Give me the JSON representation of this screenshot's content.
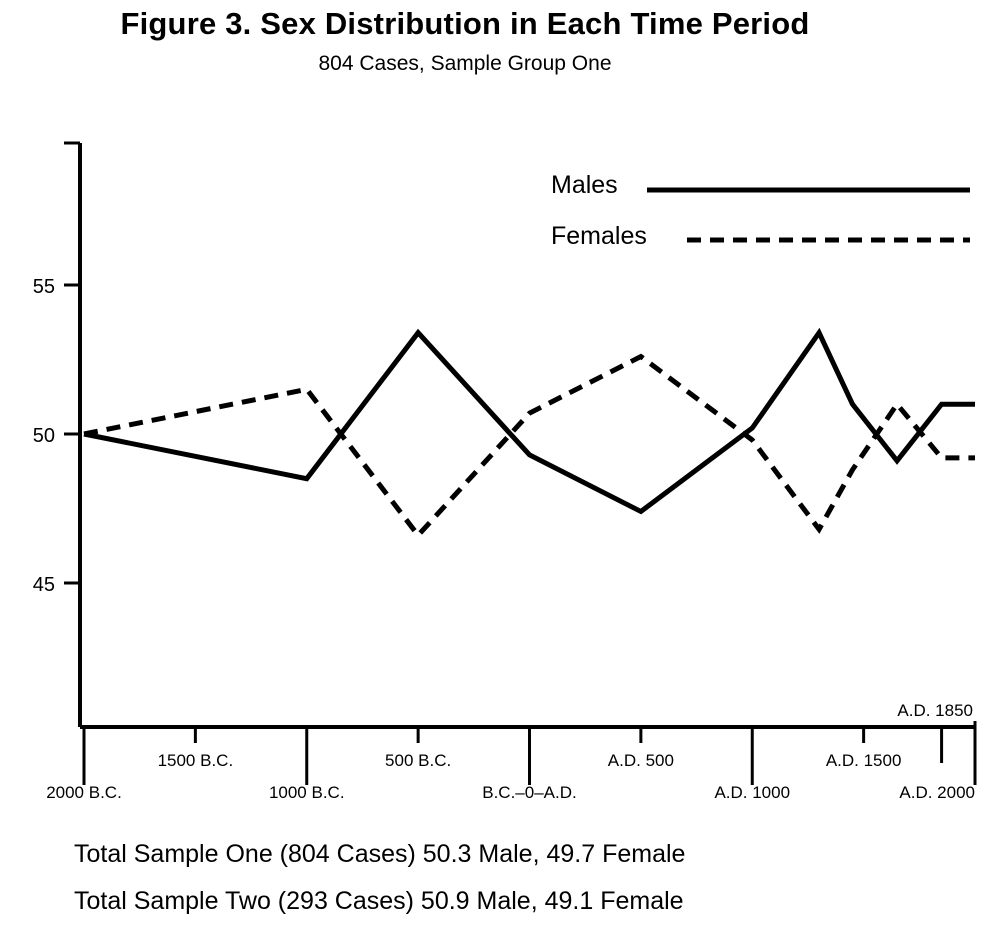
{
  "chart_data": {
    "type": "line",
    "title": "Figure 3.  Sex Distribution in Each Time Period",
    "subtitle": "804 Cases, Sample Group One",
    "xlabel": "",
    "ylabel": "",
    "x": [
      -2000,
      -1000,
      -500,
      0,
      500,
      1000,
      1500,
      1650,
      1850,
      2000
    ],
    "x_ticks_upper": [
      {
        "year": -1500,
        "label": "1500 B.C."
      },
      {
        "year": -500,
        "label": "500 B.C."
      },
      {
        "year": 500,
        "label": "A.D. 500"
      },
      {
        "year": 1500,
        "label": "A.D. 1500"
      }
    ],
    "x_ticks_lower": [
      {
        "year": -2000,
        "label": "2000 B.C."
      },
      {
        "year": -1000,
        "label": "1000 B.C."
      },
      {
        "year": 0,
        "label": "B.C.–0–A.D."
      },
      {
        "year": 1000,
        "label": "A.D. 1000"
      },
      {
        "year": 2000,
        "label": "A.D. 2000"
      }
    ],
    "x_marker": {
      "year": 1850,
      "label": "A.D. 1850"
    },
    "xlim": [
      -2000,
      2000
    ],
    "ylim": [
      40.2,
      59.8
    ],
    "y_ticks": [
      45,
      50,
      55
    ],
    "series": [
      {
        "name": "Males",
        "style": "solid",
        "x": [
          -2000,
          -1000,
          -500,
          0,
          500,
          1000,
          1300,
          1450,
          1650,
          1850,
          1950,
          2000
        ],
        "values": [
          50,
          48.5,
          53.4,
          49.3,
          47.4,
          50.2,
          53.4,
          51,
          49.1,
          51,
          51,
          51
        ]
      },
      {
        "name": "Females",
        "style": "dashed",
        "x": [
          -2000,
          -1000,
          -500,
          0,
          500,
          1000,
          1300,
          1450,
          1650,
          1850,
          1950,
          2000
        ],
        "values": [
          50,
          51.5,
          46.6,
          50.7,
          52.6,
          49.8,
          46.8,
          48.8,
          51,
          49.2,
          49.2,
          49.2
        ]
      }
    ],
    "legend": "top-right",
    "grid": false,
    "color": "#000000"
  },
  "notes": [
    "Total Sample One (804 Cases) 50.3 Male, 49.7 Female",
    "Total Sample Two (293 Cases) 50.9 Male, 49.1 Female"
  ]
}
